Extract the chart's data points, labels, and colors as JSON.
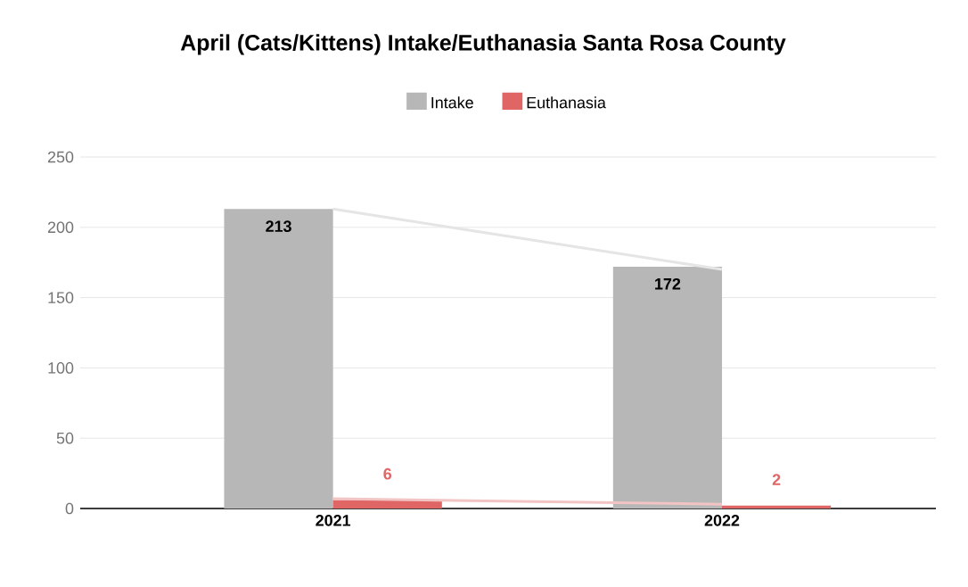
{
  "chart_data": {
    "type": "bar",
    "title": "April (Cats/Kittens) Intake/Euthanasia Santa Rosa County",
    "categories": [
      "2021",
      "2022"
    ],
    "series": [
      {
        "name": "Intake",
        "color": "#b7b7b7",
        "values": [
          213,
          172
        ],
        "value_labels": [
          "213",
          "172"
        ]
      },
      {
        "name": "Euthanasia",
        "color": "#e06666",
        "values": [
          6,
          2
        ],
        "value_labels": [
          "6",
          "2"
        ]
      },
      {
        "type": "line",
        "color": "#e5e5e5",
        "values": [
          213,
          170
        ]
      },
      {
        "type": "line",
        "color": "#f2c4c4",
        "values": [
          7,
          3
        ]
      }
    ],
    "ylim": [
      0,
      250
    ],
    "yticks": [
      0,
      50,
      100,
      150,
      200,
      250
    ],
    "grid": "y",
    "legend": "top"
  }
}
